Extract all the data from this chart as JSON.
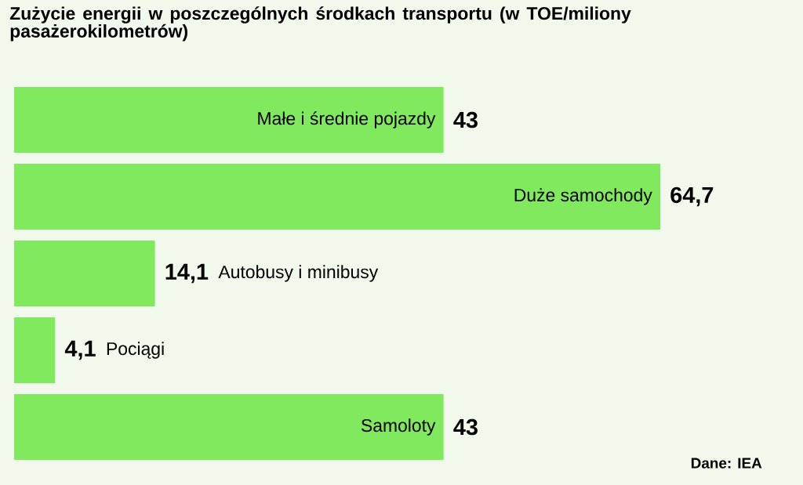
{
  "chart_data": {
    "type": "bar",
    "orientation": "horizontal",
    "title": "Zużycie energii w poszczególnych środkach transportu (w TOE/miliony pasażerokilometrów)",
    "categories": [
      "Małe i średnie pojazdy",
      "Duże samochody",
      "Autobusy i minibusy",
      "Pociągi",
      "Samoloty"
    ],
    "values": [
      43,
      64.7,
      14.1,
      4.1,
      43
    ],
    "value_labels": [
      "43",
      "64,7",
      "14,1",
      "4,1",
      "43"
    ],
    "color": "#80e95d",
    "annotations": [
      "Dane: IEA"
    ]
  }
}
